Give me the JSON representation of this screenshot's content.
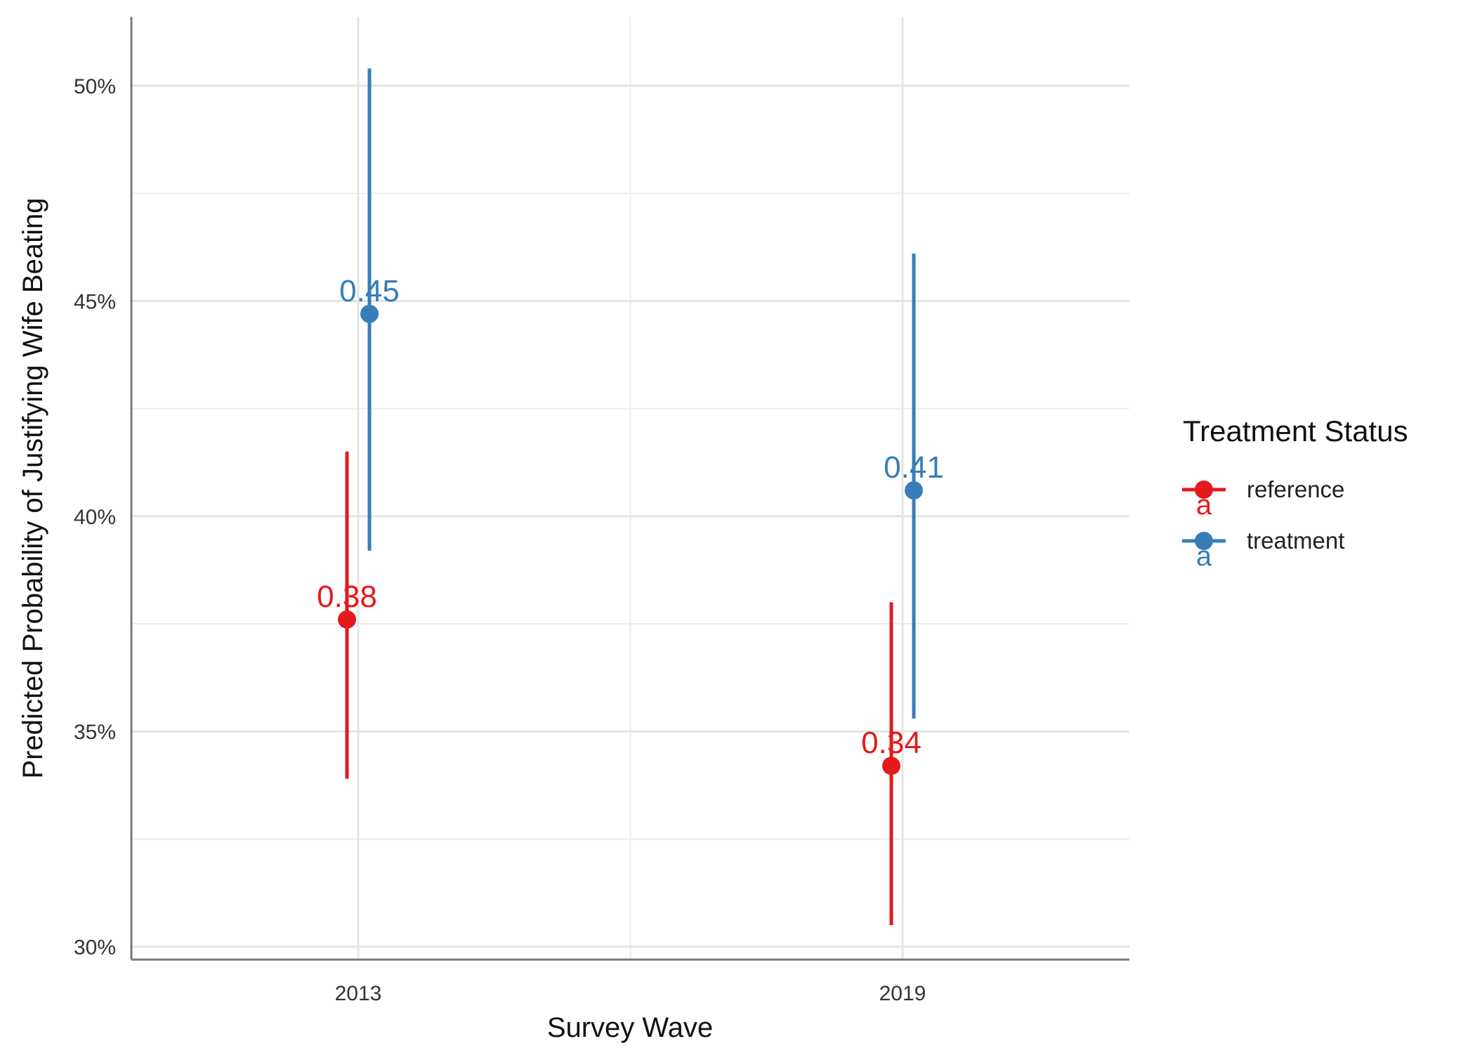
{
  "chart_data": {
    "type": "scatter",
    "categories": [
      "2013",
      "2019"
    ],
    "xlabel": "Survey Wave",
    "ylabel": "Predicted Probability of Justifying Wife Beating",
    "ylim": [
      0.297,
      0.516
    ],
    "y_ticks": [
      {
        "value": 0.3,
        "label": "30%"
      },
      {
        "value": 0.35,
        "label": "35%"
      },
      {
        "value": 0.4,
        "label": "40%"
      },
      {
        "value": 0.45,
        "label": "45%"
      },
      {
        "value": 0.5,
        "label": "50%"
      }
    ],
    "grid": true,
    "legend": {
      "title": "Treatment Status",
      "position": "right",
      "key_glyph": "a"
    },
    "series": [
      {
        "name": "reference",
        "color": "#E41A1C",
        "points": [
          {
            "x": "2013",
            "y": 0.376,
            "low": 0.339,
            "high": 0.415,
            "label": "0.38"
          },
          {
            "x": "2019",
            "y": 0.342,
            "low": 0.305,
            "high": 0.38,
            "label": "0.34"
          }
        ]
      },
      {
        "name": "treatment",
        "color": "#377EB8",
        "points": [
          {
            "x": "2013",
            "y": 0.447,
            "low": 0.392,
            "high": 0.504,
            "label": "0.45"
          },
          {
            "x": "2019",
            "y": 0.406,
            "low": 0.353,
            "high": 0.461,
            "label": "0.41"
          }
        ]
      }
    ]
  }
}
